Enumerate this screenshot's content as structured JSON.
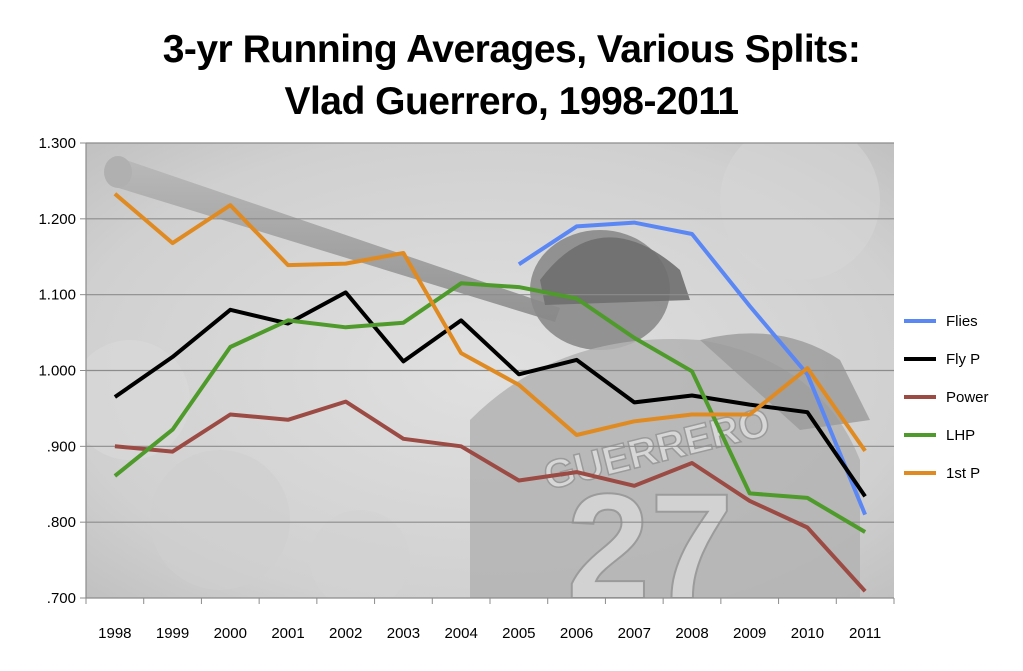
{
  "chart_data": {
    "type": "line",
    "title_lines": [
      "3-yr Running Averages, Various Splits:",
      "Vlad Guerrero, 1998-2011"
    ],
    "xlabel": "",
    "ylabel": "",
    "x": [
      "1998",
      "1999",
      "2000",
      "2001",
      "2002",
      "2003",
      "2004",
      "2005",
      "2006",
      "2007",
      "2008",
      "2009",
      "2010",
      "2011"
    ],
    "ylim": [
      0.7,
      1.3
    ],
    "yticks": [
      0.7,
      0.8,
      0.9,
      1.0,
      1.1,
      1.2,
      1.3
    ],
    "ytick_labels": [
      ".700",
      ".800",
      ".900",
      "1.000",
      "1.100",
      "1.200",
      "1.300"
    ],
    "grid": "horizontal",
    "legend_position": "right",
    "background": "photo of a batter wearing a jersey lettered GUERRERO 27",
    "series": [
      {
        "name": "Flies",
        "color": "#5B87F5",
        "values": [
          null,
          null,
          null,
          null,
          null,
          null,
          null,
          1.14,
          1.19,
          1.195,
          1.18,
          1.085,
          0.995,
          0.81
        ]
      },
      {
        "name": "Fly P",
        "color": "#000000",
        "values": [
          0.965,
          1.018,
          1.08,
          1.062,
          1.103,
          1.012,
          1.066,
          0.995,
          1.014,
          0.958,
          0.967,
          0.955,
          0.945,
          0.834
        ]
      },
      {
        "name": "Power",
        "color": "#9B4B43",
        "values": [
          0.9,
          0.893,
          0.942,
          0.935,
          0.959,
          0.91,
          0.9,
          0.855,
          0.866,
          0.848,
          0.878,
          0.828,
          0.793,
          0.709
        ]
      },
      {
        "name": "LHP",
        "color": "#4E9A2A",
        "values": [
          0.861,
          0.922,
          1.031,
          1.066,
          1.057,
          1.063,
          1.115,
          1.11,
          1.095,
          1.043,
          0.999,
          0.838,
          0.832,
          0.787
        ]
      },
      {
        "name": "1st P",
        "color": "#E08A22",
        "values": [
          1.233,
          1.168,
          1.218,
          1.139,
          1.141,
          1.155,
          1.023,
          0.981,
          0.915,
          0.933,
          0.942,
          0.942,
          1.003,
          0.894
        ]
      }
    ]
  }
}
